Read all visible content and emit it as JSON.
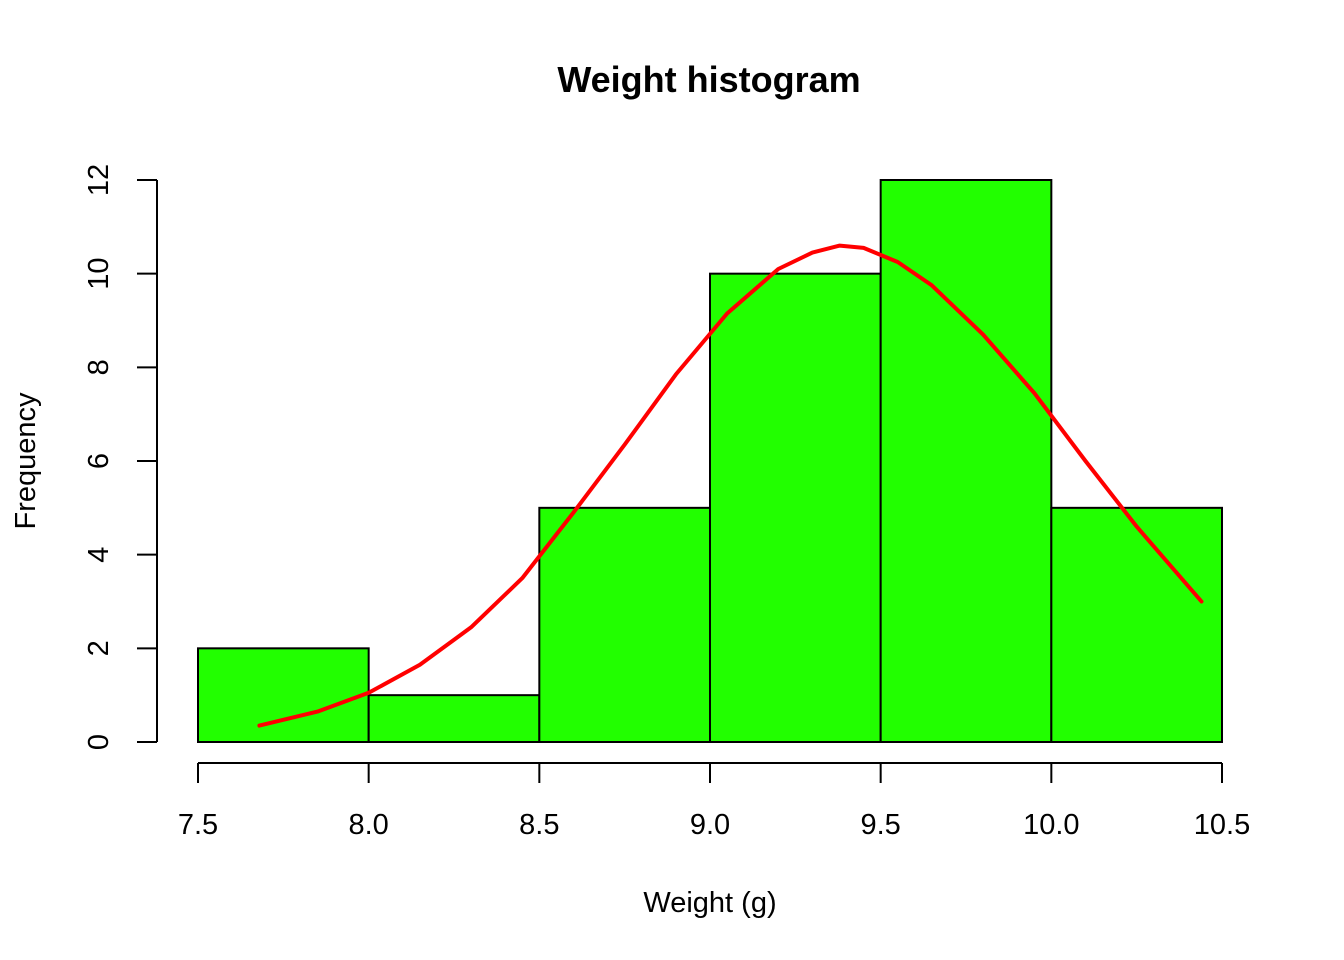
{
  "chart_data": {
    "type": "bar",
    "title": "Weight histogram",
    "xlabel": "Weight (g)",
    "ylabel": "Frequency",
    "bins": [
      {
        "start": 7.5,
        "end": 8.0,
        "count": 2
      },
      {
        "start": 8.0,
        "end": 8.5,
        "count": 1
      },
      {
        "start": 8.5,
        "end": 9.0,
        "count": 5
      },
      {
        "start": 9.0,
        "end": 9.5,
        "count": 10
      },
      {
        "start": 9.5,
        "end": 10.0,
        "count": 12
      },
      {
        "start": 10.0,
        "end": 10.5,
        "count": 5
      }
    ],
    "xlim": [
      7.5,
      10.5
    ],
    "ylim": [
      0,
      12
    ],
    "x_ticks": [
      "7.5",
      "8.0",
      "8.5",
      "9.0",
      "9.5",
      "10.0",
      "10.5"
    ],
    "y_ticks": [
      "0",
      "2",
      "4",
      "6",
      "8",
      "10",
      "12"
    ],
    "density_curve": {
      "x": [
        7.68,
        7.85,
        8.0,
        8.15,
        8.3,
        8.45,
        8.6,
        8.75,
        8.9,
        9.05,
        9.2,
        9.3,
        9.38,
        9.45,
        9.55,
        9.65,
        9.8,
        9.95,
        10.1,
        10.25,
        10.44
      ],
      "y": [
        0.35,
        0.65,
        1.05,
        1.65,
        2.45,
        3.5,
        4.9,
        6.35,
        7.85,
        9.15,
        10.1,
        10.45,
        10.6,
        10.55,
        10.25,
        9.75,
        8.7,
        7.45,
        6.0,
        4.6,
        3.0
      ]
    },
    "colors": {
      "bar_fill": "#22ff00",
      "bar_stroke": "#000000",
      "curve": "#ff0000"
    },
    "grid": false,
    "legend": "none"
  }
}
